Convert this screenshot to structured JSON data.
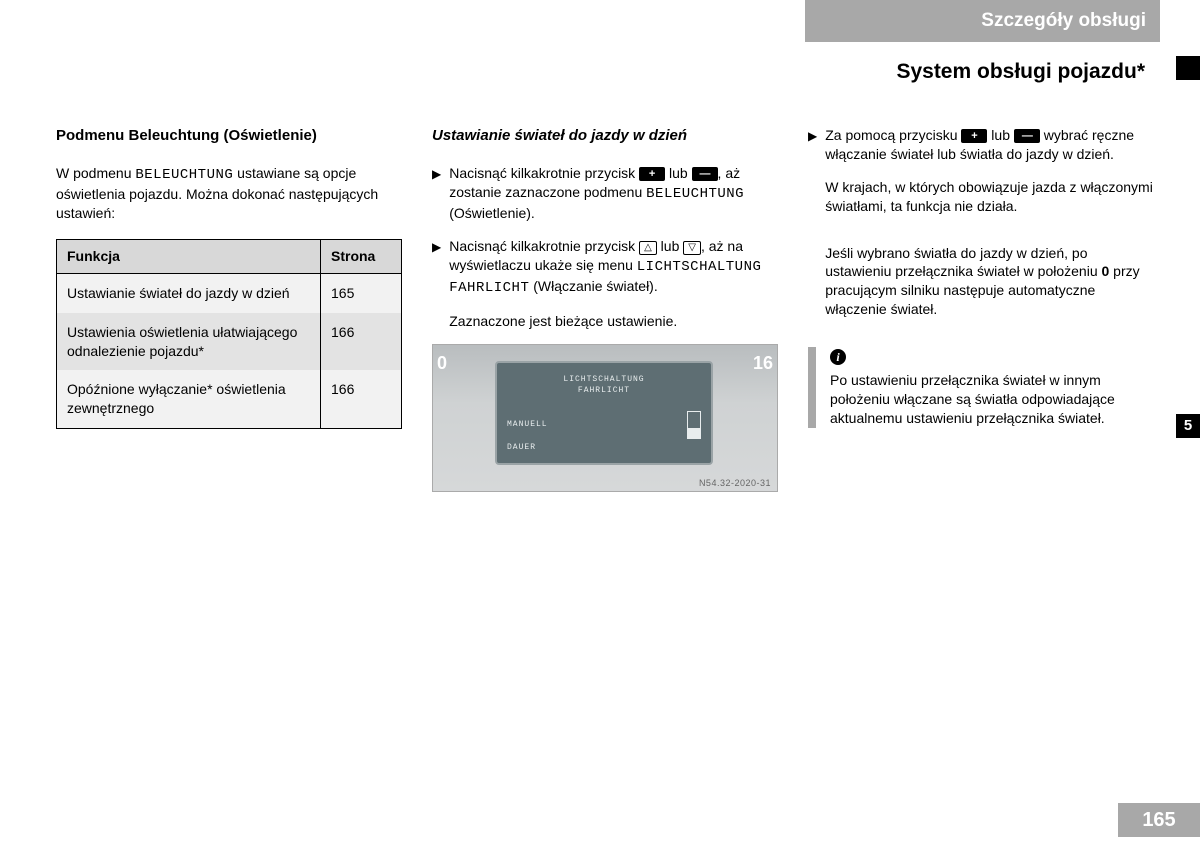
{
  "header": {
    "gray_title": "Szczegóły obsługi",
    "section_title": "System obsługi pojazdu*"
  },
  "side": {
    "tab": "5",
    "page_number": "165"
  },
  "col1": {
    "heading": "Podmenu Beleuchtung (Oświetlenie)",
    "intro_parts": [
      "W podmenu ",
      "BELEUCHTUNG",
      " ustawiane są opcje oświetlenia pojazdu. Można dokonać następujących ustawień:"
    ],
    "table": {
      "headers": [
        "Funkcja",
        "Strona"
      ],
      "rows": [
        {
          "func": "Ustawianie świateł do jazdy w dzień",
          "page": "165",
          "shade": "light"
        },
        {
          "func": "Ustawienia oświetlenia ułatwiającego odnalezienie pojazdu*",
          "page": "166",
          "shade": "dark"
        },
        {
          "func": "Opóźnione wyłączanie* oświetlenia zewnętrznego",
          "page": "166",
          "shade": "light"
        }
      ]
    }
  },
  "col2": {
    "heading": "Ustawianie świateł do jazdy w dzień",
    "step1": {
      "pre": "Nacisnąć kilkakrotnie przycisk ",
      "mid": " lub ",
      "post": ", aż zostanie zaznaczone podmenu ",
      "mono": "BELEUCHTUNG",
      "tail": " (Oświetlenie)."
    },
    "step2": {
      "pre": "Nacisnąć kilkakrotnie przycisk ",
      "mid": " lub ",
      "post": ", aż na wyświetlaczu ukaże się menu ",
      "mono": "LICHTSCHALTUNG FAHRLICHT",
      "tail": " (Włączanie świateł)."
    },
    "note": "Zaznaczone jest bieżące ustawienie.",
    "display": {
      "left_num": "0",
      "right_num": "16",
      "line1": "LICHTSCHALTUNG",
      "line2": "FAHRLICHT",
      "left_label": "MANUELL",
      "right_label": "DAUER",
      "img_num": "N54.32-2020-31"
    }
  },
  "col3": {
    "step": {
      "pre": "Za pomocą przycisku ",
      "mid": " lub ",
      "post": " wybrać ręczne włączanie świateł lub światła do jazdy w dzień."
    },
    "p1": "W krajach, w których obowiązuje jazda z włączonymi światłami, ta funkcja nie działa.",
    "p2_parts": [
      "Jeśli wybrano światła do jazdy w dzień, po ustawieniu przełącznika świateł w położeniu ",
      "0",
      " przy pracującym silniku następuje automatyczne włączenie świateł."
    ],
    "info": "Po ustawieniu przełącznika świateł w innym położeniu włączane są światła odpowiadające aktualnemu ustawieniu przełącznika świateł."
  },
  "colors": {
    "header_gray": "#a8a8a8",
    "table_header": "#d8d8d8",
    "table_light": "#f2f2f2",
    "table_dark": "#e3e3e3",
    "screen_bg": "#5e6e73"
  }
}
